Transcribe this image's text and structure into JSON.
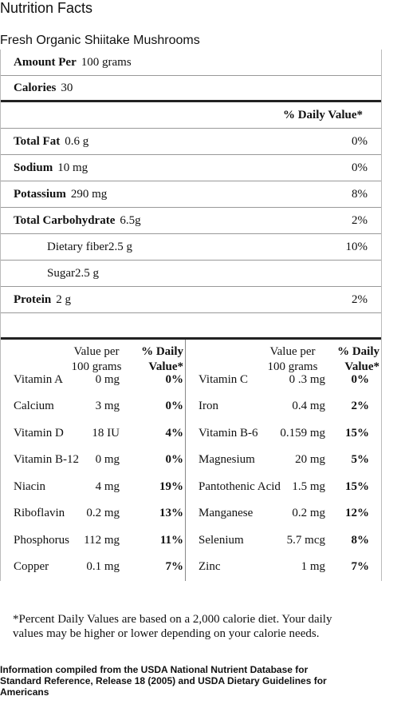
{
  "title": "Nutrition Facts",
  "subtitle": "Fresh Organic Shiitake Mushrooms",
  "amount": {
    "label": "Amount Per",
    "value": "100 grams"
  },
  "calories": {
    "label": "Calories",
    "value": "30"
  },
  "dv_header": "% Daily Value*",
  "nutrients": [
    {
      "name": "Total Fat",
      "amount": "0.6 g",
      "dv": "0%"
    },
    {
      "name": "Sodium",
      "amount": "10 mg",
      "dv": "0%"
    },
    {
      "name": "Potassium",
      "amount": "290 mg",
      "dv": "8%"
    },
    {
      "name": "Total Carbohydrate",
      "amount": "6.5g",
      "dv": "2%",
      "subitems": [
        {
          "name": "Dietary fiber",
          "amount": "2.5 g",
          "dv": "10%"
        },
        {
          "name": "Sugar",
          "amount": "2.5 g"
        }
      ]
    },
    {
      "name": "Protein",
      "amount": "2 g",
      "dv": "2%"
    }
  ],
  "vitamins": {
    "header": {
      "value": "Value per 100 grams",
      "dv": "% Daily Value*"
    },
    "rows": [
      [
        {
          "name": "Vitamin A",
          "amount": "0 mg",
          "dv": "0%"
        },
        {
          "name": "Vitamin C",
          "amount": "0 .3 mg",
          "dv": "0%"
        }
      ],
      [
        {
          "name": "Calcium",
          "amount": "3 mg",
          "dv": "0%"
        },
        {
          "name": "Iron",
          "amount": "0.4 mg",
          "dv": "2%"
        }
      ],
      [
        {
          "name": "Vitamin D",
          "amount": "18 IU",
          "dv": "4%"
        },
        {
          "name": "Vitamin B-6",
          "amount": "0.159 mg",
          "dv": "15%"
        }
      ],
      [
        {
          "name": "Vitamin B-12",
          "amount": "0 mg",
          "dv": "0%"
        },
        {
          "name": "Magnesium",
          "amount": "20 mg",
          "dv": "5%"
        }
      ],
      [
        {
          "name": "Niacin",
          "amount": "4 mg",
          "dv": "19%"
        },
        {
          "name": "Pantothenic Acid",
          "amount": "1.5 mg",
          "dv": "15%"
        }
      ],
      [
        {
          "name": "Riboflavin",
          "amount": "0.2 mg",
          "dv": "13%"
        },
        {
          "name": "Manganese",
          "amount": "0.2 mg",
          "dv": "12%"
        }
      ],
      [
        {
          "name": "Phosphorus",
          "amount": "112 mg",
          "dv": "11%"
        },
        {
          "name": "Selenium",
          "amount": "5.7 mcg",
          "dv": "8%"
        }
      ],
      [
        {
          "name": "Copper",
          "amount": "0.1 mg",
          "dv": "7%"
        },
        {
          "name": "Zinc",
          "amount": "1 mg",
          "dv": "7%"
        }
      ]
    ]
  },
  "footnote": "*Percent Daily Values are based on a 2,000 calorie diet. Your daily values may be higher or lower depending on your calorie needs.",
  "source": "Information compiled from the USDA National Nutrient Database for Standard Reference, Release 18 (2005) and USDA Dietary Guidelines for Americans"
}
